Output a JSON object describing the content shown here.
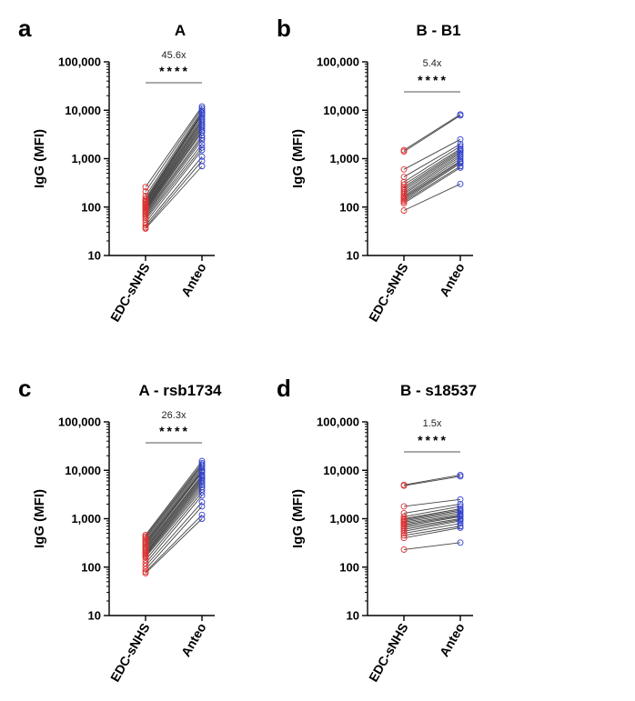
{
  "chart_data": [
    {
      "panel": "a",
      "title": "A",
      "type": "line",
      "ylabel": "IgG (MFI)",
      "yscale": "log",
      "ylim": [
        10,
        100000
      ],
      "yticks": [
        "10",
        "100",
        "1,000",
        "10,000",
        "100,000"
      ],
      "categories": [
        "EDC-sNHS",
        "Anteo"
      ],
      "annotation": {
        "fold": "45.6x",
        "stars": "****"
      },
      "pairs": [
        [
          260,
          12000
        ],
        [
          210,
          11000
        ],
        [
          170,
          9800
        ],
        [
          150,
          9000
        ],
        [
          140,
          8500
        ],
        [
          130,
          8000
        ],
        [
          125,
          7200
        ],
        [
          118,
          6500
        ],
        [
          112,
          6000
        ],
        [
          105,
          5500
        ],
        [
          100,
          5000
        ],
        [
          95,
          4600
        ],
        [
          90,
          4200
        ],
        [
          85,
          3800
        ],
        [
          80,
          3500
        ],
        [
          75,
          3000
        ],
        [
          70,
          2700
        ],
        [
          65,
          2400
        ],
        [
          60,
          2000
        ],
        [
          55,
          1700
        ],
        [
          48,
          1500
        ],
        [
          42,
          1100
        ],
        [
          38,
          900
        ],
        [
          36,
          700
        ]
      ]
    },
    {
      "panel": "b",
      "title": "B - B1",
      "type": "line",
      "ylabel": "IgG (MFI)",
      "yscale": "log",
      "ylim": [
        10,
        100000
      ],
      "yticks": [
        "10",
        "100",
        "1,000",
        "10,000",
        "100,000"
      ],
      "categories": [
        "EDC-sNHS",
        "Anteo"
      ],
      "annotation": {
        "fold": "5.4x",
        "stars": "****"
      },
      "pairs": [
        [
          1500,
          8200
        ],
        [
          1400,
          7800
        ],
        [
          600,
          2500
        ],
        [
          420,
          2000
        ],
        [
          330,
          1800
        ],
        [
          290,
          1600
        ],
        [
          260,
          1500
        ],
        [
          240,
          1400
        ],
        [
          220,
          1300
        ],
        [
          200,
          1200
        ],
        [
          185,
          1100
        ],
        [
          170,
          1000
        ],
        [
          160,
          900
        ],
        [
          150,
          850
        ],
        [
          140,
          800
        ],
        [
          130,
          700
        ],
        [
          120,
          650
        ],
        [
          85,
          300
        ]
      ]
    },
    {
      "panel": "c",
      "title": "A - rsb1734",
      "type": "line",
      "ylabel": "IgG (MFI)",
      "yscale": "log",
      "ylim": [
        10,
        100000
      ],
      "yticks": [
        "10",
        "100",
        "1,000",
        "10,000",
        "100,000"
      ],
      "categories": [
        "EDC-sNHS",
        "Anteo"
      ],
      "annotation": {
        "fold": "26.3x",
        "stars": "****"
      },
      "pairs": [
        [
          460,
          15500
        ],
        [
          430,
          14000
        ],
        [
          400,
          13000
        ],
        [
          370,
          12000
        ],
        [
          340,
          11000
        ],
        [
          320,
          10000
        ],
        [
          300,
          9500
        ],
        [
          280,
          9000
        ],
        [
          260,
          8000
        ],
        [
          245,
          7500
        ],
        [
          230,
          7000
        ],
        [
          215,
          6500
        ],
        [
          200,
          6000
        ],
        [
          190,
          5500
        ],
        [
          180,
          5000
        ],
        [
          170,
          4500
        ],
        [
          160,
          4000
        ],
        [
          140,
          3500
        ],
        [
          120,
          3000
        ],
        [
          105,
          2200
        ],
        [
          90,
          1800
        ],
        [
          80,
          1200
        ],
        [
          75,
          1000
        ]
      ]
    },
    {
      "panel": "d",
      "title": "B - s18537",
      "type": "line",
      "ylabel": "IgG (MFI)",
      "yscale": "log",
      "ylim": [
        10,
        100000
      ],
      "yticks": [
        "10",
        "100",
        "1,000",
        "10,000",
        "100,000"
      ],
      "categories": [
        "EDC-sNHS",
        "Anteo"
      ],
      "annotation": {
        "fold": "1.5x",
        "stars": "****"
      },
      "pairs": [
        [
          5000,
          8000
        ],
        [
          4800,
          7500
        ],
        [
          1800,
          2500
        ],
        [
          1300,
          2000
        ],
        [
          1100,
          1800
        ],
        [
          1000,
          1600
        ],
        [
          950,
          1500
        ],
        [
          900,
          1400
        ],
        [
          850,
          1300
        ],
        [
          800,
          1200
        ],
        [
          750,
          1150
        ],
        [
          700,
          1100
        ],
        [
          650,
          1000
        ],
        [
          600,
          950
        ],
        [
          550,
          900
        ],
        [
          500,
          800
        ],
        [
          450,
          700
        ],
        [
          400,
          650
        ],
        [
          230,
          320
        ]
      ]
    }
  ],
  "colors": {
    "edc_marker": "#e03030",
    "anteo_marker": "#3040d0",
    "line": "#444444",
    "axis": "#000000"
  }
}
